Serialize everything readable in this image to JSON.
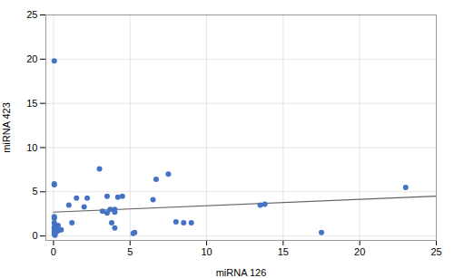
{
  "chart_data": {
    "type": "scatter",
    "x": [
      0.05,
      0.05,
      0.05,
      0.05,
      0.05,
      0.05,
      0.05,
      0.05,
      0.05,
      0.05,
      0.1,
      0.1,
      0.1,
      0.1,
      0.2,
      0.2,
      0.3,
      0.3,
      0.5,
      1.0,
      1.2,
      1.5,
      2.0,
      2.2,
      3.0,
      3.2,
      3.5,
      3.5,
      3.7,
      3.8,
      4.0,
      4.0,
      4.0,
      4.2,
      4.5,
      5.2,
      5.3,
      6.5,
      6.7,
      7.5,
      8.0,
      8.5,
      9.0,
      13.5,
      13.8,
      17.5,
      23.0
    ],
    "values": [
      19.8,
      5.8,
      5.9,
      2.2,
      2.0,
      1.5,
      1.0,
      0.8,
      0.5,
      0.2,
      0.8,
      0.6,
      0.4,
      0.1,
      1.0,
      0.5,
      1.2,
      0.6,
      0.7,
      3.5,
      1.5,
      4.3,
      3.3,
      4.3,
      7.6,
      2.8,
      4.5,
      2.6,
      3.0,
      1.5,
      2.7,
      3.0,
      0.9,
      4.4,
      4.5,
      0.3,
      0.4,
      4.1,
      6.4,
      7.0,
      1.6,
      1.5,
      1.5,
      3.5,
      3.6,
      0.4,
      5.5
    ],
    "color": "#4472C4",
    "trendline": {
      "type": "line",
      "x": [
        0,
        25
      ],
      "values": [
        2.7,
        4.5
      ],
      "color": "#606060"
    },
    "xlabel": "miRNA 126",
    "ylabel": "miRNA 423",
    "xlim": [
      -0.5,
      25
    ],
    "ylim": [
      -0.5,
      25
    ],
    "xticks": [
      0,
      5,
      10,
      15,
      20,
      25
    ],
    "yticks": [
      0,
      5,
      10,
      15,
      20,
      25
    ],
    "grid": true
  }
}
